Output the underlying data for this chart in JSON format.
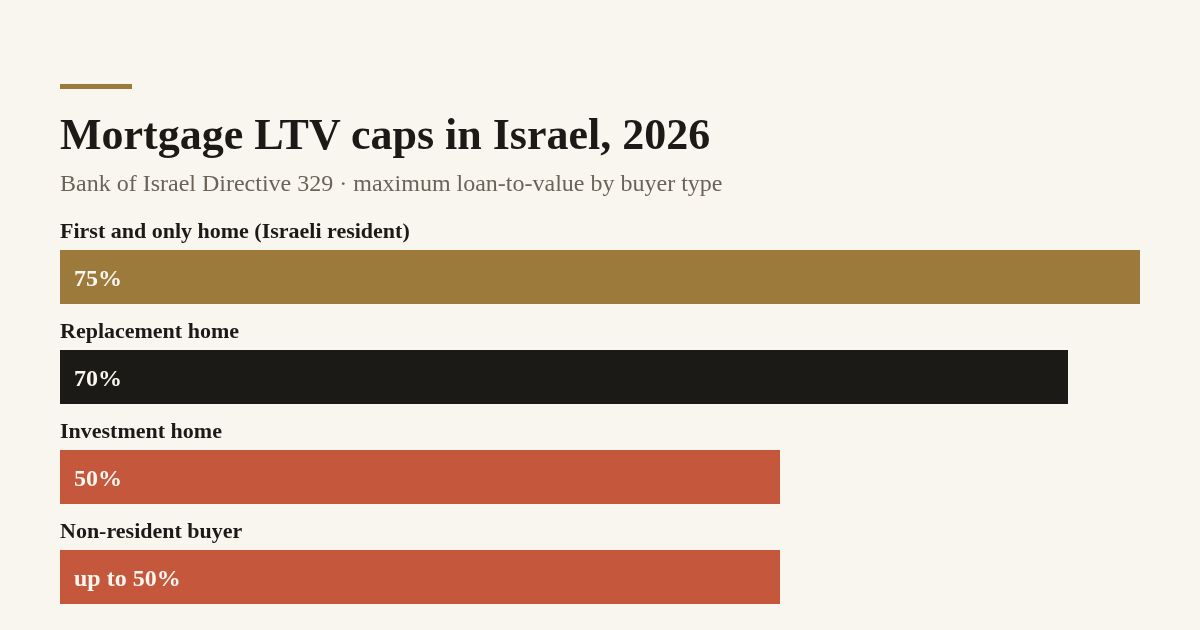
{
  "chart_data": {
    "type": "bar",
    "orientation": "horizontal",
    "title": "Mortgage LTV caps in Israel, 2026",
    "subtitle": "Bank of Israel Directive 329 · maximum loan-to-value by buyer type",
    "categories": [
      "First and only home (Israeli resident)",
      "Replacement home",
      "Investment home",
      "Non-resident buyer"
    ],
    "values": [
      75,
      70,
      50,
      50
    ],
    "colors": [
      "#9c7a3c",
      "#1c1a17",
      "#c4573c",
      "#c4573c"
    ],
    "value_labels": [
      "75%",
      "70%",
      "50%",
      "up to 50%"
    ],
    "grid": false,
    "legend": false
  }
}
